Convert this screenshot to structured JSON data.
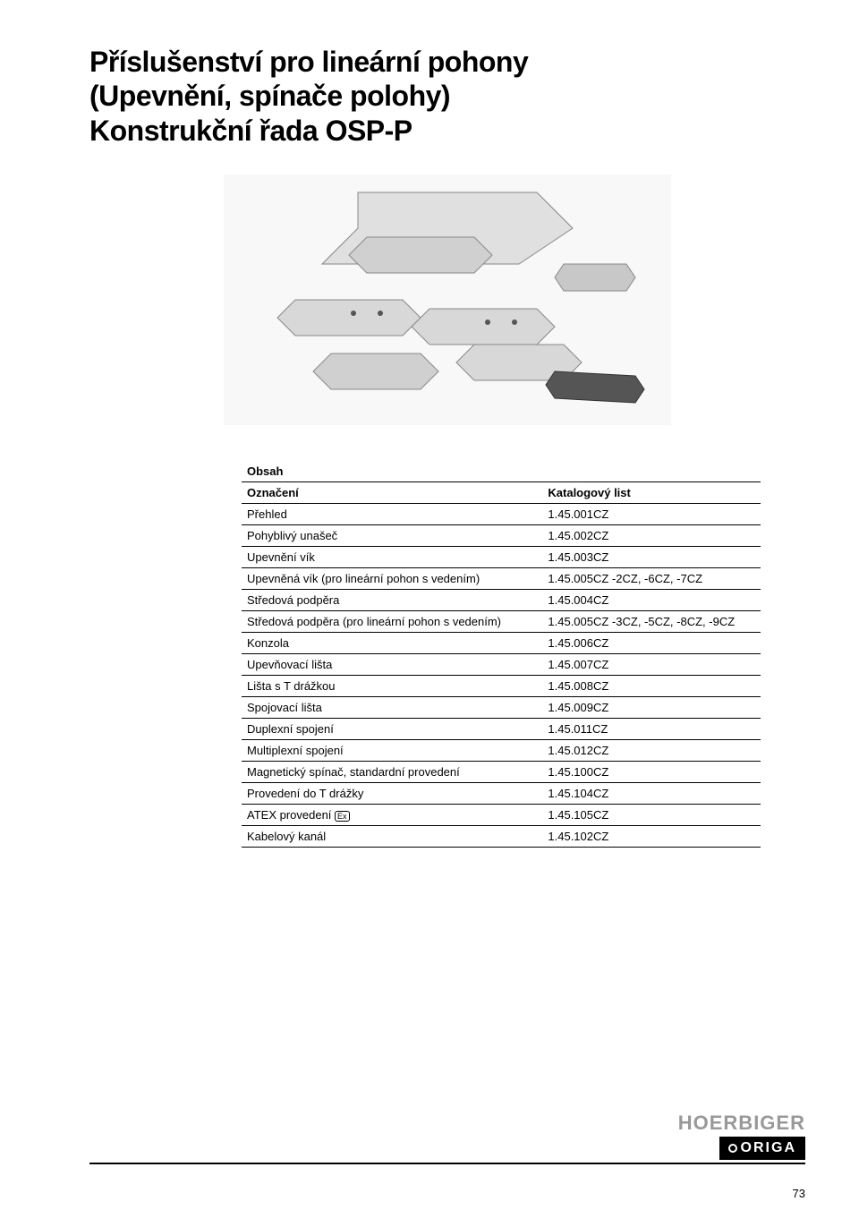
{
  "title": {
    "line1": "Příslušenství pro lineární pohony",
    "line2": "(Upevnění, spínače polohy)",
    "line3": "Konstrukční řada OSP-P"
  },
  "table": {
    "caption": "Obsah",
    "header_col1": "Označení",
    "header_col2": "Katalogový list",
    "rows": [
      {
        "label": "Přehled",
        "code": "1.45.001CZ"
      },
      {
        "label": "Pohyblivý unašeč",
        "code": "1.45.002CZ"
      },
      {
        "label": "Upevnění vík",
        "code": "1.45.003CZ"
      },
      {
        "label": "Upevněná vík (pro lineární pohon s vedením)",
        "code": "1.45.005CZ -2CZ, -6CZ, -7CZ"
      },
      {
        "label": "Středová podpěra",
        "code": "1.45.004CZ"
      },
      {
        "label": "Středová podpěra (pro lineární pohon s vedením)",
        "code": "1.45.005CZ -3CZ, -5CZ, -8CZ, -9CZ"
      },
      {
        "label": "Konzola",
        "code": "1.45.006CZ"
      },
      {
        "label": "Upevňovací lišta",
        "code": "1.45.007CZ"
      },
      {
        "label": "Lišta s T drážkou",
        "code": "1.45.008CZ"
      },
      {
        "label": "Spojovací lišta",
        "code": "1.45.009CZ"
      },
      {
        "label": "Duplexní spojení",
        "code": "1.45.011CZ"
      },
      {
        "label": "Multiplexní spojení",
        "code": "1.45.012CZ"
      },
      {
        "label": "Magnetický spínač, standardní provedení",
        "code": "1.45.100CZ"
      },
      {
        "label": "Provedení do T drážky",
        "code": "1.45.104CZ"
      },
      {
        "label": "ATEX provedení",
        "code": "1.45.105CZ",
        "icon": "Ex"
      },
      {
        "label": "Kabelový kanál",
        "code": "1.45.102CZ"
      }
    ]
  },
  "logo": {
    "top": "HOERBIGER",
    "bottom": "ORIGA"
  },
  "page_number": "73",
  "colors": {
    "text": "#000000",
    "background": "#ffffff",
    "logo_gray": "#999999",
    "image_fill": "#d8d8d8",
    "image_stroke": "#888888"
  }
}
